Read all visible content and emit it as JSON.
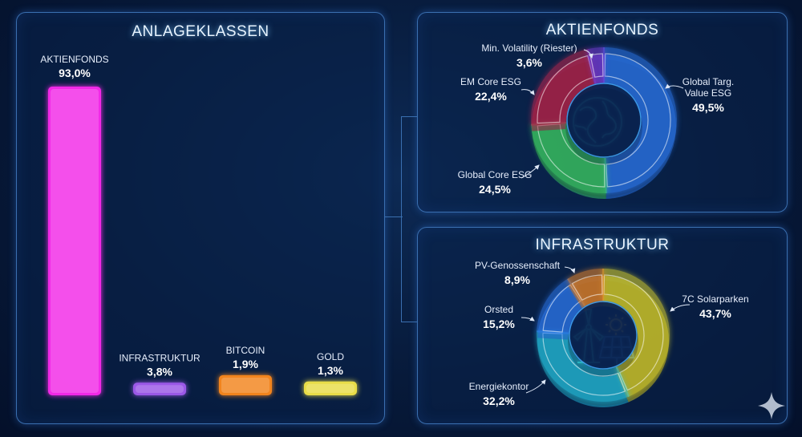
{
  "panels": {
    "left_title": "ANLAGEKLASSEN",
    "top_right_title": "AKTIENFONDS",
    "bottom_right_title": "INFRASTRUKTUR"
  },
  "chart_data": [
    {
      "type": "bar",
      "title": "ANLAGEKLASSEN",
      "categories": [
        "AKTIENFONDS",
        "INFRASTRUKTUR",
        "BITCOIN",
        "GOLD"
      ],
      "values": [
        93.0,
        3.8,
        1.9,
        1.3
      ],
      "value_labels": [
        "93,0%",
        "3,8%",
        "1,9%",
        "1,3%"
      ],
      "colors": [
        "#ff2cf0",
        "#a35cf0",
        "#ff8a1e",
        "#f5e84a"
      ]
    },
    {
      "type": "pie",
      "title": "AKTIENFONDS",
      "categories": [
        "Global Targ. Value ESG",
        "Global Core ESG",
        "EM Core ESG",
        "Min. Volatility (Riester)"
      ],
      "label_lines": [
        [
          "Global Targ.",
          "Value ESG"
        ],
        [
          "Global Core ESG"
        ],
        [
          "EM Core ESG"
        ],
        [
          "Min. Volatility (Riester)"
        ]
      ],
      "values": [
        49.5,
        24.5,
        22.4,
        3.6
      ],
      "value_labels": [
        "49,5%",
        "24,5%",
        "22,4%",
        "3,6%"
      ],
      "colors": [
        "#2f7cf6",
        "#3fd46a",
        "#c3264f",
        "#7b3fe0"
      ],
      "center_icon": "globe-icon"
    },
    {
      "type": "pie",
      "title": "INFRASTRUKTUR",
      "categories": [
        "7C Solarparken",
        "Energiekontor",
        "Orsted",
        "PV-Genossenschaft"
      ],
      "label_lines": [
        [
          "7C Solarparken"
        ],
        [
          "Energiekontor"
        ],
        [
          "Orsted"
        ],
        [
          "PV-Genossenschaft"
        ]
      ],
      "values": [
        43.7,
        32.2,
        15.2,
        8.9
      ],
      "value_labels": [
        "43,7%",
        "32,2%",
        "15,2%",
        "8,9%"
      ],
      "colors": [
        "#e6dc2a",
        "#26c6e6",
        "#2f7cf6",
        "#f08a2a"
      ],
      "center_icon": "wind-solar-icon"
    }
  ]
}
